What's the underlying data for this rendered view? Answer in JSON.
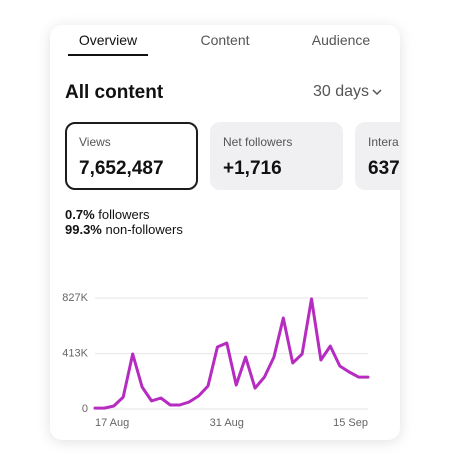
{
  "tabs": [
    "Overview",
    "Content",
    "Audience"
  ],
  "heading": "All content",
  "range": "30 days",
  "metrics": [
    {
      "label": "Views",
      "value": "7,652,487"
    },
    {
      "label": "Net followers",
      "value": "+1,716"
    },
    {
      "label": "Intera",
      "value": "637"
    }
  ],
  "breakdown": [
    {
      "value": "0.7%",
      "label": "followers"
    },
    {
      "value": "99.3%",
      "label": "non-followers"
    }
  ],
  "chart_data": {
    "type": "line",
    "categories": [
      "17 Aug",
      null,
      null,
      null,
      null,
      null,
      null,
      null,
      null,
      null,
      null,
      null,
      null,
      null,
      "31 Aug",
      null,
      null,
      null,
      null,
      null,
      null,
      null,
      null,
      null,
      null,
      null,
      null,
      null,
      null,
      "15 Sep"
    ],
    "values": [
      7000,
      7000,
      22000,
      89000,
      410000,
      164000,
      60000,
      82000,
      30000,
      30000,
      52000,
      97000,
      171000,
      462000,
      492000,
      179000,
      387000,
      156000,
      238000,
      387000,
      678000,
      343000,
      410000,
      820000,
      365000,
      469000,
      320000,
      276000,
      238000,
      238000
    ],
    "color": "#b62cc0",
    "ylim": [
      0,
      827000
    ],
    "yticks": [
      0,
      {
        "value": 413000,
        "label": "413K"
      },
      {
        "value": 827000,
        "label": "827K"
      }
    ],
    "grid": true
  }
}
